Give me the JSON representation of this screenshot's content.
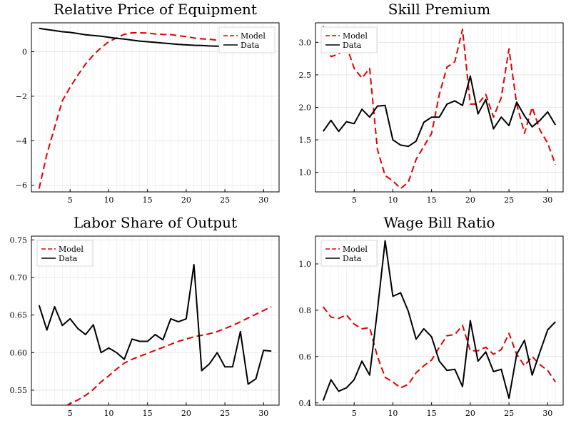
{
  "chart_data": [
    {
      "type": "line",
      "title": "Relative Price of Equipment",
      "xlabel": "",
      "ylabel": "",
      "xlim": [
        0,
        32
      ],
      "ylim": [
        -6.3,
        1.3
      ],
      "xticks": [
        5,
        10,
        15,
        20,
        25,
        30
      ],
      "yticks": [
        -6,
        -4,
        -2,
        0
      ],
      "ytick_labels": [
        "−6",
        "−4",
        "−2",
        "0"
      ],
      "grid": true,
      "legend_position": "top-right",
      "x": [
        1,
        2,
        3,
        4,
        5,
        6,
        7,
        8,
        9,
        10,
        11,
        12,
        13,
        14,
        15,
        16,
        17,
        18,
        19,
        20,
        21,
        22,
        23,
        24,
        25,
        26,
        27,
        28,
        29,
        30,
        31
      ],
      "series": [
        {
          "name": "Model",
          "color": "#e00000",
          "dash": "dashed",
          "values": [
            -6.15,
            -4.6,
            -3.4,
            -2.2,
            -1.6,
            -1.05,
            -0.55,
            -0.15,
            0.18,
            0.45,
            0.62,
            0.78,
            0.85,
            0.85,
            0.84,
            0.8,
            0.78,
            0.77,
            0.72,
            0.68,
            0.62,
            0.58,
            0.56,
            0.52,
            0.5,
            0.48,
            0.47,
            0.45,
            0.43,
            0.42,
            0.4
          ]
        },
        {
          "name": "Data",
          "color": "#000000",
          "dash": "solid",
          "values": [
            1.05,
            1.0,
            0.95,
            0.9,
            0.87,
            0.82,
            0.76,
            0.73,
            0.7,
            0.65,
            0.6,
            0.57,
            0.52,
            0.48,
            0.45,
            0.42,
            0.39,
            0.36,
            0.33,
            0.31,
            0.29,
            0.28,
            0.26,
            0.25,
            0.24,
            0.22,
            0.21,
            0.2,
            0.19,
            0.18,
            0.17
          ]
        }
      ]
    },
    {
      "type": "line",
      "title": "Skill Premium",
      "xlabel": "",
      "ylabel": "",
      "xlim": [
        0,
        32
      ],
      "ylim": [
        0.7,
        3.3
      ],
      "xticks": [
        5,
        10,
        15,
        20,
        25,
        30
      ],
      "yticks": [
        1.0,
        1.5,
        2.0,
        2.5,
        3.0
      ],
      "ytick_labels": [
        "1.0",
        "1.5",
        "2.0",
        "2.5",
        "3.0"
      ],
      "grid": true,
      "legend_position": "top-left",
      "x": [
        1,
        2,
        3,
        4,
        5,
        6,
        7,
        8,
        9,
        10,
        11,
        12,
        13,
        14,
        15,
        16,
        17,
        18,
        19,
        20,
        21,
        22,
        23,
        24,
        25,
        26,
        27,
        28,
        29,
        30,
        31
      ],
      "series": [
        {
          "name": "Model",
          "color": "#e00000",
          "dash": "dashed",
          "values": [
            3.25,
            2.78,
            2.82,
            2.95,
            2.6,
            2.45,
            2.6,
            1.35,
            0.95,
            0.87,
            0.75,
            0.85,
            1.2,
            1.4,
            1.6,
            2.2,
            2.62,
            2.7,
            3.2,
            2.05,
            2.05,
            2.2,
            1.85,
            2.15,
            2.9,
            2.05,
            1.6,
            2.0,
            1.65,
            1.45,
            1.12
          ]
        },
        {
          "name": "Data",
          "color": "#000000",
          "dash": "solid",
          "values": [
            1.63,
            1.8,
            1.63,
            1.78,
            1.75,
            1.97,
            1.85,
            2.02,
            2.03,
            1.5,
            1.42,
            1.4,
            1.48,
            1.77,
            1.85,
            1.85,
            2.05,
            2.1,
            2.03,
            2.48,
            1.9,
            2.12,
            1.67,
            1.85,
            1.72,
            2.08,
            1.87,
            1.7,
            1.8,
            1.93,
            1.73
          ]
        }
      ]
    },
    {
      "type": "line",
      "title": "Labor Share of Output",
      "xlabel": "",
      "ylabel": "",
      "xlim": [
        0,
        32
      ],
      "ylim": [
        0.53,
        0.755
      ],
      "xticks": [
        5,
        10,
        15,
        20,
        25,
        30
      ],
      "yticks": [
        0.55,
        0.6,
        0.65,
        0.7,
        0.75
      ],
      "ytick_labels": [
        "0.55",
        "0.60",
        "0.65",
        "0.70",
        "0.75"
      ],
      "grid": true,
      "legend_position": "top-left",
      "x": [
        1,
        2,
        3,
        4,
        5,
        6,
        7,
        8,
        9,
        10,
        11,
        12,
        13,
        14,
        15,
        16,
        17,
        18,
        19,
        20,
        21,
        22,
        23,
        24,
        25,
        26,
        27,
        28,
        29,
        30,
        31
      ],
      "series": [
        {
          "name": "Model",
          "color": "#e00000",
          "dash": "dashed",
          "values": [
            0.512,
            0.518,
            0.522,
            0.527,
            0.532,
            0.537,
            0.543,
            0.551,
            0.561,
            0.569,
            0.578,
            0.586,
            0.591,
            0.595,
            0.599,
            0.603,
            0.607,
            0.611,
            0.615,
            0.618,
            0.621,
            0.623,
            0.625,
            0.628,
            0.632,
            0.636,
            0.641,
            0.646,
            0.651,
            0.656,
            0.661
          ]
        },
        {
          "name": "Data",
          "color": "#000000",
          "dash": "solid",
          "values": [
            0.663,
            0.63,
            0.661,
            0.636,
            0.645,
            0.632,
            0.624,
            0.637,
            0.6,
            0.606,
            0.6,
            0.591,
            0.618,
            0.615,
            0.615,
            0.624,
            0.617,
            0.645,
            0.641,
            0.645,
            0.717,
            0.576,
            0.585,
            0.6,
            0.581,
            0.581,
            0.628,
            0.558,
            0.565,
            0.603,
            0.602
          ]
        }
      ]
    },
    {
      "type": "line",
      "title": "Wage Bill Ratio",
      "xlabel": "",
      "ylabel": "",
      "xlim": [
        0,
        32
      ],
      "ylim": [
        0.39,
        1.12
      ],
      "xticks": [
        5,
        10,
        15,
        20,
        25,
        30
      ],
      "yticks": [
        0.4,
        0.6,
        0.8,
        1.0
      ],
      "ytick_labels": [
        "0.4",
        "0.6",
        "0.8",
        "1.0"
      ],
      "grid": true,
      "legend_position": "top-left",
      "x": [
        1,
        2,
        3,
        4,
        5,
        6,
        7,
        8,
        9,
        10,
        11,
        12,
        13,
        14,
        15,
        16,
        17,
        18,
        19,
        20,
        21,
        22,
        23,
        24,
        25,
        26,
        27,
        28,
        29,
        30,
        31
      ],
      "series": [
        {
          "name": "Model",
          "color": "#e00000",
          "dash": "dashed",
          "values": [
            0.815,
            0.77,
            0.765,
            0.78,
            0.74,
            0.72,
            0.725,
            0.6,
            0.51,
            0.49,
            0.465,
            0.48,
            0.53,
            0.56,
            0.585,
            0.64,
            0.69,
            0.695,
            0.735,
            0.625,
            0.625,
            0.64,
            0.61,
            0.63,
            0.7,
            0.61,
            0.56,
            0.6,
            0.565,
            0.54,
            0.49
          ]
        },
        {
          "name": "Data",
          "color": "#000000",
          "dash": "solid",
          "values": [
            0.41,
            0.5,
            0.45,
            0.465,
            0.5,
            0.58,
            0.52,
            0.8,
            1.1,
            0.86,
            0.875,
            0.795,
            0.675,
            0.72,
            0.685,
            0.58,
            0.54,
            0.545,
            0.47,
            0.755,
            0.58,
            0.62,
            0.535,
            0.545,
            0.42,
            0.61,
            0.67,
            0.52,
            0.62,
            0.715,
            0.75
          ]
        }
      ]
    }
  ]
}
